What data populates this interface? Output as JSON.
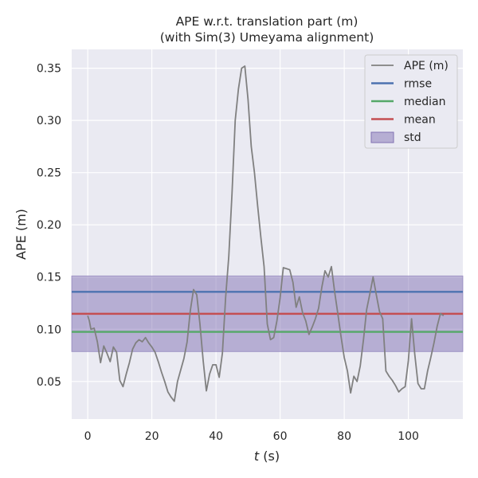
{
  "chart_data": {
    "type": "line",
    "title": "APE w.r.t. translation part (m)",
    "subtitle": "(with Sim(3) Umeyama alignment)",
    "xlabel": "t (s)",
    "xlabel_var": "t",
    "xlabel_unit": " (s)",
    "ylabel": "APE (m)",
    "xlim": [
      -5,
      117
    ],
    "ylim": [
      0.014,
      0.368
    ],
    "xticks": [
      0,
      20,
      40,
      60,
      80,
      100
    ],
    "yticks": [
      0.05,
      0.1,
      0.15,
      0.2,
      0.25,
      0.3,
      0.35
    ],
    "ytick_labels": [
      "0.05",
      "0.10",
      "0.15",
      "0.20",
      "0.25",
      "0.30",
      "0.35"
    ],
    "grid": true,
    "legend_placement": "top-right",
    "colors": {
      "background": "#eaeaf2",
      "grid": "#ffffff",
      "ape": "#808080",
      "rmse": "#4c72b0",
      "median": "#55a868",
      "mean": "#c44e52",
      "std": "#8172b3"
    },
    "series": [
      {
        "name": "APE (m)",
        "x": [
          0,
          0.5,
          1,
          2,
          3,
          4,
          5,
          6,
          7,
          8,
          9,
          10,
          11,
          12,
          13,
          14,
          15,
          16,
          17,
          18,
          19,
          20,
          21,
          22,
          23,
          24,
          25,
          26,
          27,
          28,
          29,
          30,
          31,
          32,
          33,
          34,
          35,
          36,
          37,
          38,
          39,
          40,
          41,
          42,
          43,
          44,
          45,
          46,
          47,
          48,
          49,
          50,
          51,
          52,
          53,
          54,
          55,
          56,
          57,
          58,
          59,
          60,
          61,
          62,
          63,
          64,
          65,
          66,
          67,
          68,
          69,
          70,
          71,
          72,
          73,
          74,
          75,
          76,
          77,
          78,
          79,
          80,
          81,
          82,
          83,
          84,
          85,
          86,
          87,
          88,
          89,
          90,
          91,
          92,
          93,
          94,
          95,
          96,
          97,
          98,
          99,
          100,
          101,
          102,
          103,
          104,
          105,
          106,
          107,
          108,
          109,
          110,
          111
        ],
        "values": [
          0.113,
          0.108,
          0.1,
          0.101,
          0.088,
          0.068,
          0.084,
          0.077,
          0.069,
          0.083,
          0.078,
          0.051,
          0.045,
          0.057,
          0.068,
          0.081,
          0.087,
          0.09,
          0.088,
          0.092,
          0.087,
          0.083,
          0.078,
          0.069,
          0.059,
          0.05,
          0.04,
          0.035,
          0.031,
          0.05,
          0.061,
          0.072,
          0.088,
          0.118,
          0.138,
          0.133,
          0.105,
          0.07,
          0.041,
          0.057,
          0.066,
          0.066,
          0.054,
          0.077,
          0.13,
          0.17,
          0.23,
          0.3,
          0.33,
          0.35,
          0.352,
          0.32,
          0.275,
          0.25,
          0.218,
          0.188,
          0.16,
          0.105,
          0.09,
          0.092,
          0.108,
          0.13,
          0.159,
          0.158,
          0.157,
          0.145,
          0.121,
          0.131,
          0.116,
          0.108,
          0.095,
          0.102,
          0.11,
          0.12,
          0.14,
          0.156,
          0.15,
          0.16,
          0.136,
          0.115,
          0.093,
          0.073,
          0.06,
          0.039,
          0.055,
          0.05,
          0.065,
          0.09,
          0.119,
          0.134,
          0.15,
          0.133,
          0.117,
          0.11,
          0.06,
          0.055,
          0.051,
          0.046,
          0.04,
          0.043,
          0.045,
          0.07,
          0.11,
          0.076,
          0.048,
          0.043,
          0.043,
          0.06,
          0.073,
          0.087,
          0.103,
          0.115,
          0.113
        ]
      }
    ],
    "hlines": [
      {
        "name": "rmse",
        "value": 0.1358
      },
      {
        "name": "median",
        "value": 0.0975
      },
      {
        "name": "mean",
        "value": 0.1148
      }
    ],
    "band": {
      "name": "std",
      "lower": 0.0786,
      "upper": 0.151
    },
    "legend": [
      "APE (m)",
      "rmse",
      "median",
      "mean",
      "std"
    ]
  }
}
